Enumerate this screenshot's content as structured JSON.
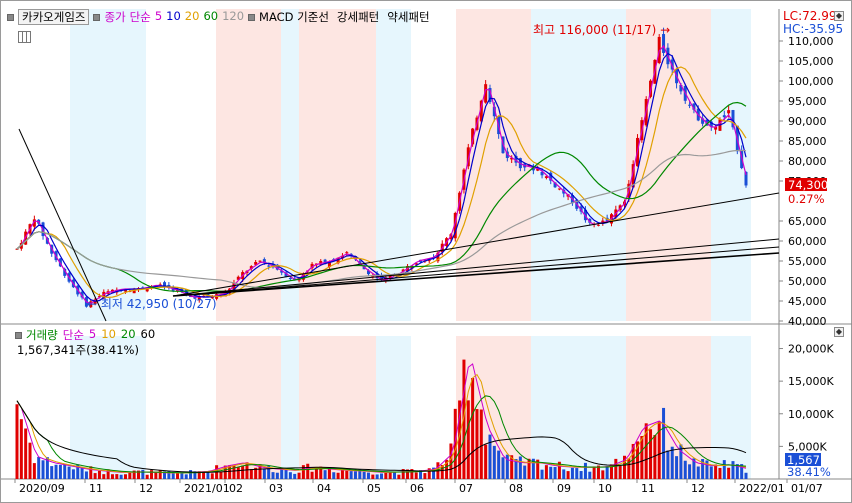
{
  "stock": {
    "name": "카카오게임즈"
  },
  "legend_price": [
    {
      "label": "종가",
      "color": "#cc00cc"
    },
    {
      "label": "단순",
      "color": "#cc00cc"
    },
    {
      "label": "5",
      "color": "#cc00cc"
    },
    {
      "label": "10",
      "color": "#0000cc"
    },
    {
      "label": "20",
      "color": "#e0a000"
    },
    {
      "label": "60",
      "color": "#008800"
    },
    {
      "label": "120",
      "color": "#999999"
    }
  ],
  "legend_price_extra": [
    "MACD 기준선",
    "강세패턴",
    "약세패턴"
  ],
  "legend_volume": [
    {
      "label": "거래량",
      "color": "#008800"
    },
    {
      "label": "단순",
      "color": "#cc00cc"
    },
    {
      "label": "5",
      "color": "#cc00cc"
    },
    {
      "label": "10",
      "color": "#e0a000"
    },
    {
      "label": "20",
      "color": "#008800"
    },
    {
      "label": "60",
      "color": "#000000"
    }
  ],
  "indicators": {
    "lc": "LC:72.99",
    "hc": "HC:-35.95"
  },
  "price_tag": {
    "value": "74,300",
    "change": "0.27%"
  },
  "annotations": {
    "high": "최고 116,000 (11/17)",
    "low": "최저 42,950 (10/27)"
  },
  "volume_info": {
    "current": "1,567,341주(38.41%)",
    "tag_value": "1,567K",
    "tag_pct": "38.41%"
  },
  "colors": {
    "up": "#e00000",
    "down": "#1a4fd6",
    "band_blue": "#e6f6fd",
    "band_red": "#fde6e2"
  },
  "chart_data": [
    {
      "type": "candlestick",
      "title": "카카오게임즈",
      "y_ticks": [
        "110,000",
        "105,000",
        "100,000",
        "95,000",
        "90,000",
        "85,000",
        "80,000",
        "75,000",
        "65,000",
        "60,000",
        "55,000",
        "50,000",
        "45,000",
        "40,000"
      ],
      "x_ticks": [
        "2020/09",
        "11",
        "12",
        "2021/01",
        "02",
        "03",
        "04",
        "05",
        "06",
        "07",
        "08",
        "09",
        "10",
        "11",
        "12",
        "2022/01",
        "01/07"
      ],
      "ylim": [
        40000,
        113000
      ],
      "high": {
        "value": 116000,
        "date": "11/17"
      },
      "low": {
        "value": 42950,
        "date": "10/27"
      },
      "last_close": 74300,
      "close_series": [
        58000,
        66000,
        57000,
        50000,
        44000,
        47000,
        48000,
        48000,
        49000,
        48000,
        46000,
        46000,
        47000,
        52000,
        55000,
        53000,
        50000,
        54000,
        55000,
        57000,
        53000,
        50000,
        52000,
        55000,
        56000,
        62000,
        83000,
        100000,
        82000,
        79000,
        78000,
        74000,
        70000,
        64000,
        65000,
        70000,
        90000,
        110000,
        100000,
        92000,
        88000,
        92000,
        74300
      ]
    },
    {
      "type": "bar",
      "title": "거래량",
      "y_ticks": [
        "20,000K",
        "15,000K",
        "10,000K",
        "5,000K"
      ],
      "ylim": [
        0,
        21000
      ],
      "unit": "K",
      "volume_series": [
        12000,
        3500,
        2500,
        2000,
        1500,
        1200,
        1000,
        1100,
        1000,
        900,
        1000,
        1200,
        2000,
        2500,
        1800,
        1500,
        1300,
        1800,
        1500,
        1300,
        1200,
        1000,
        1100,
        1200,
        1500,
        4000,
        19000,
        8000,
        3000,
        2500,
        2500,
        2000,
        1800,
        1800,
        1900,
        3000,
        8000,
        9000,
        4500,
        2500,
        2000,
        2200,
        1567
      ]
    }
  ]
}
